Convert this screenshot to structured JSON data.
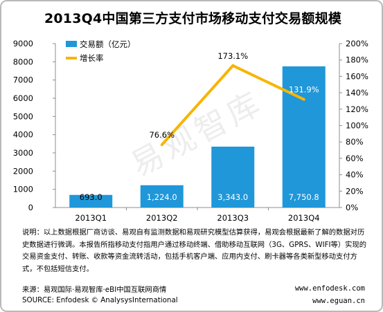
{
  "title": "2013Q4中国第三方支付市场移动支付交易额规模",
  "chart_data": {
    "type": "bar",
    "categories": [
      "2013Q1",
      "2013Q2",
      "2013Q3",
      "2013Q4"
    ],
    "series": [
      {
        "name": "交易额（亿元）",
        "type": "bar",
        "axis": "left",
        "values": [
          693.0,
          1224.0,
          3343.0,
          7750.8
        ],
        "labels": [
          "693.0",
          "1,224.0",
          "3,343.0",
          "7,750.8"
        ],
        "color": "#1f97d9"
      },
      {
        "name": "增长率",
        "type": "line",
        "axis": "right",
        "values": [
          null,
          76.6,
          173.1,
          131.9
        ],
        "labels": [
          "",
          "76.6%",
          "173.1%",
          "131.9%"
        ],
        "color": "#f7b500"
      }
    ],
    "y_left": {
      "range": [
        0,
        9000
      ],
      "ticks": [
        "0",
        "1000",
        "2000",
        "3000",
        "4000",
        "5000",
        "6000",
        "7000",
        "8000",
        "9000"
      ]
    },
    "y_right": {
      "range": [
        0,
        200
      ],
      "ticks": [
        "0%",
        "20%",
        "40%",
        "60%",
        "80%",
        "100%",
        "120%",
        "140%",
        "160%",
        "180%",
        "200%"
      ]
    },
    "legend_position": "top-left",
    "grid": false
  },
  "watermark": "易观智库",
  "note": "说明：以上数据根据厂商访谈、易观自有监测数据和易观研究模型估算获得，易观会根据最新了解的数据对历史数据进行微调。本报告所指移动支付指用户通过移动终端、借助移动互联网（3G、GPRS、WIFI等）实现的交易资金支付、转账、收款等资金流转活动，包括手机客户端、应用内支付、刷卡器等各类新型移动支付方式，不包括短信支付。",
  "source_cn": "来源：易观国际·易观智库·eBI中国互联网商情",
  "source_en": "SOURCE: Enfodesk © AnalysysInternational",
  "site1": "www.enfodesk.com",
  "site2": "www.eguan.cn"
}
